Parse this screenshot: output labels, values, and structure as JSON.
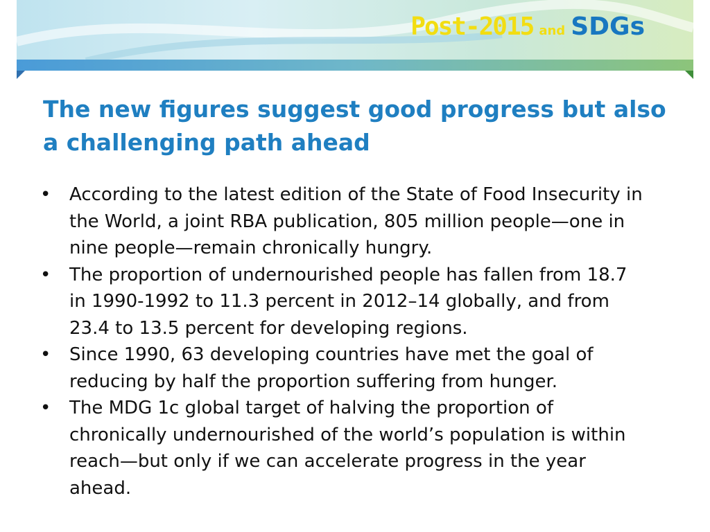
{
  "header": {
    "logo_1": "Post-2015",
    "logo_2": "and",
    "logo_3": "SDGs"
  },
  "title": "The new figures suggest good progress but also a challenging path ahead",
  "bullets": [
    "According to the latest edition of the State of Food Insecurity in the World, a joint RBA publication, 805 million people—one in nine people—remain chronically hungry.",
    "The proportion of undernourished people has fallen from 18.7 in 1990-1992 to 11.3 percent in 2012–14 globally, and from 23.4 to 13.5 percent for developing regions.",
    "Since 1990, 63 developing countries have met the goal of reducing by half the proportion suffering from hunger.",
    "The MDG 1c global target of halving the proportion of chronically undernourished of the world’s population is within reach—but only if we can accelerate progress in the year ahead."
  ]
}
